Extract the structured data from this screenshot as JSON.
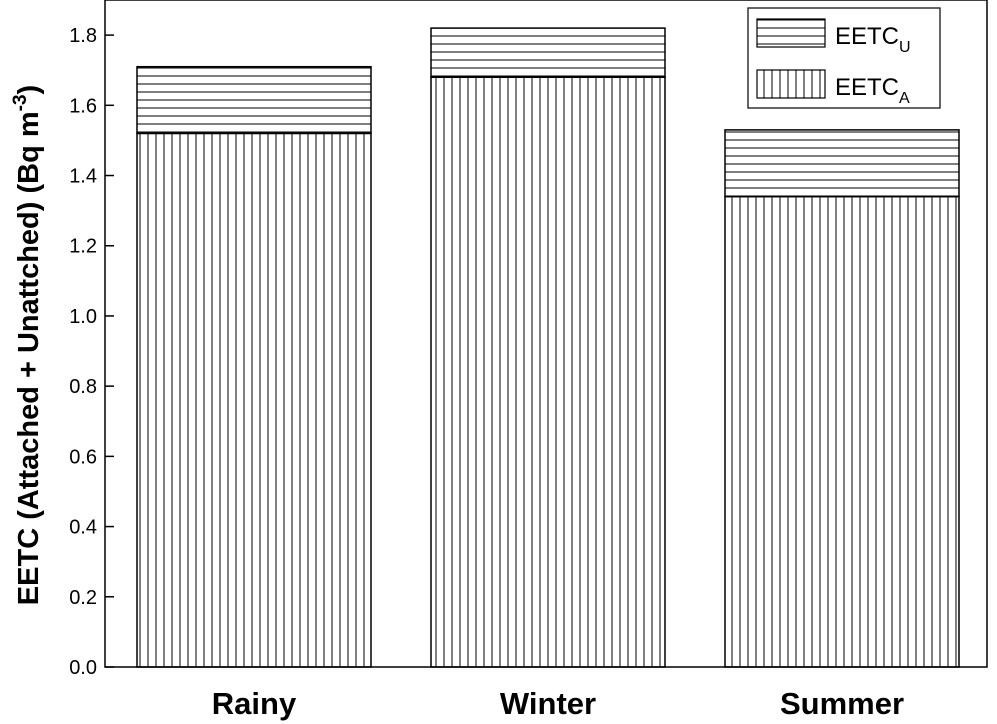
{
  "chart_data": {
    "type": "bar",
    "stacked": true,
    "categories": [
      "Rainy",
      "Winter",
      "Summer"
    ],
    "series": [
      {
        "name": "EETC_A",
        "label_main": "EETC",
        "label_sub": "A",
        "pattern": "vertical-hatch",
        "values": [
          1.52,
          1.68,
          1.34
        ]
      },
      {
        "name": "EETC_U",
        "label_main": "EETC",
        "label_sub": "U",
        "pattern": "horizontal-hatch",
        "values": [
          0.19,
          0.14,
          0.19
        ]
      }
    ],
    "ylabel_main": "EETC (Attached + Unattched)  (Bq m",
    "ylabel_sup": "-3",
    "ylabel_close": ")",
    "ylim": [
      0,
      1.9
    ],
    "yticks": [
      "0.0",
      "0.2",
      "0.4",
      "0.6",
      "0.8",
      "1.0",
      "1.2",
      "1.4",
      "1.6",
      "1.8"
    ],
    "grid": false,
    "legend_position": "top-right"
  }
}
